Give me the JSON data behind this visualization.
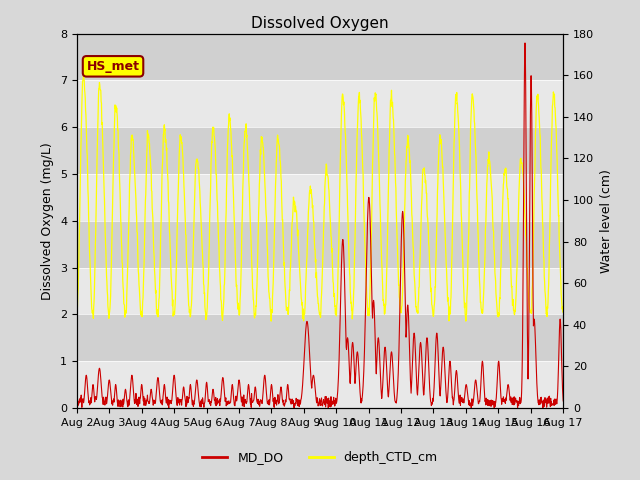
{
  "title": "Dissolved Oxygen",
  "ylabel_left": "Dissolved Oxygen (mg/L)",
  "ylabel_right": "Water level (cm)",
  "ylim_left": [
    0,
    8.0
  ],
  "ylim_right": [
    0,
    180
  ],
  "xlim": [
    0,
    15
  ],
  "xtick_labels": [
    "Aug 2",
    "Aug 3",
    "Aug 4",
    "Aug 5",
    "Aug 6",
    "Aug 7",
    "Aug 8",
    "Aug 9",
    "Aug 10",
    "Aug 11",
    "Aug 12",
    "Aug 13",
    "Aug 14",
    "Aug 15",
    "Aug 16",
    "Aug 17"
  ],
  "xtick_positions": [
    0,
    1,
    2,
    3,
    4,
    5,
    6,
    7,
    8,
    9,
    10,
    11,
    12,
    13,
    14,
    15
  ],
  "fig_bg_color": "#d8d8d8",
  "plot_bg_color": "#e8e8e8",
  "band_color": "#d0d0d0",
  "line_do_color": "#cc0000",
  "line_ctd_color": "#ffff00",
  "label_do": "MD_DO",
  "label_ctd": "depth_CTD_cm",
  "annotation_text": "HS_met",
  "annotation_bg": "#ffff00",
  "annotation_border": "#8b0000",
  "title_fontsize": 11,
  "axis_label_fontsize": 9,
  "tick_fontsize": 8
}
